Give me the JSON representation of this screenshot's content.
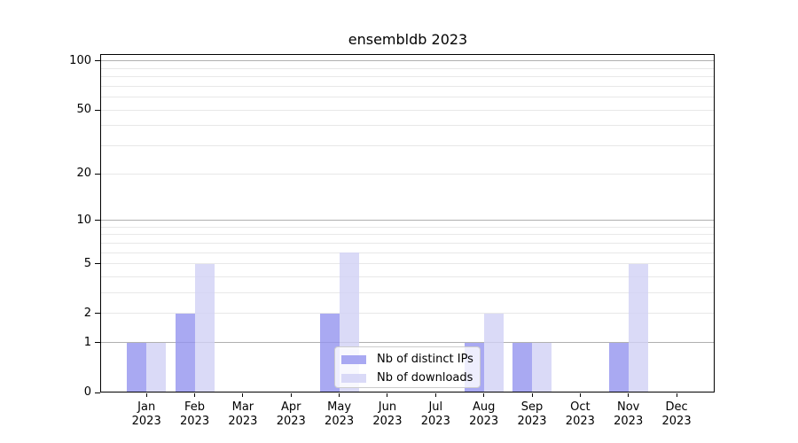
{
  "title": "ensembldb 2023",
  "year_label": "2023",
  "months": [
    "Jan",
    "Feb",
    "Mar",
    "Apr",
    "May",
    "Jun",
    "Jul",
    "Aug",
    "Sep",
    "Oct",
    "Nov",
    "Dec"
  ],
  "y_tick_labels": [
    "0",
    "1",
    "2",
    "5",
    "10",
    "20",
    "50",
    "100"
  ],
  "legend": {
    "position": "lower center",
    "items": [
      {
        "label": "Nb of distinct IPs",
        "color": "#9393ef"
      },
      {
        "label": "Nb of downloads",
        "color": "#d1d1f5"
      }
    ]
  },
  "colors": {
    "bar_ips": "#9393ef",
    "bar_downloads": "#d1d1f5",
    "bar_alpha": 0.8,
    "grid_major": "#b0b0b0",
    "grid_minor": "#e8e8e8",
    "axis": "#000000",
    "legend_border": "#cccccc",
    "background": "#ffffff"
  },
  "chart_data": {
    "type": "bar",
    "title": "ensembldb 2023",
    "categories": [
      "Jan 2023",
      "Feb 2023",
      "Mar 2023",
      "Apr 2023",
      "May 2023",
      "Jun 2023",
      "Jul 2023",
      "Aug 2023",
      "Sep 2023",
      "Oct 2023",
      "Nov 2023",
      "Dec 2023"
    ],
    "series": [
      {
        "name": "Nb of distinct IPs",
        "color": "#9393ef",
        "values": [
          1,
          2,
          0,
          0,
          2,
          0,
          0,
          1,
          1,
          0,
          1,
          0
        ]
      },
      {
        "name": "Nb of downloads",
        "color": "#d1d1f5",
        "values": [
          1,
          5,
          0,
          0,
          6,
          0,
          0,
          2,
          1,
          0,
          5,
          0
        ]
      }
    ],
    "xlabel": "",
    "ylabel": "",
    "y_scale": "log10(1+y)",
    "y_ticks": [
      0,
      1,
      2,
      5,
      10,
      20,
      50,
      100
    ],
    "y_gridlines_major": [
      1,
      10,
      100
    ],
    "y_gridlines_minor": [
      2,
      3,
      4,
      5,
      6,
      7,
      8,
      9,
      20,
      30,
      40,
      50,
      60,
      70,
      80,
      90
    ],
    "ylim": [
      0,
      110
    ],
    "grid": true,
    "legend_position": "lower center"
  }
}
